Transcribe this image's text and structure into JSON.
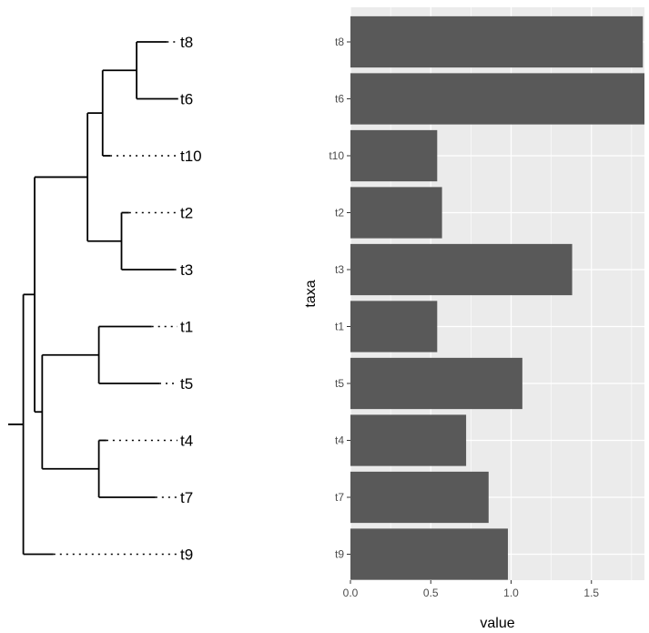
{
  "chart_data": [
    {
      "type": "tree",
      "title": "",
      "tips": [
        "t8",
        "t6",
        "t10",
        "t2",
        "t3",
        "t1",
        "t5",
        "t4",
        "t7",
        "t9"
      ],
      "root_edge": 0.04,
      "newick": "(((((t8:0.08,t6:0.11):0.09,t10:0.02):0.04,(t2:0.02,t3:0.14):0.09):0.14,((t1:0.14,t5:0.16):0.15,(t4:0.02,t7:0.15):0.15):0.02):0.03,t9:0.08);",
      "tree": {
        "children": [
          {
            "length": 0.03,
            "children": [
              {
                "length": 0.14,
                "children": [
                  {
                    "length": 0.04,
                    "children": [
                      {
                        "length": 0.09,
                        "children": [
                          {
                            "name": "t8",
                            "length": 0.08
                          },
                          {
                            "name": "t6",
                            "length": 0.11
                          }
                        ]
                      },
                      {
                        "name": "t10",
                        "length": 0.02
                      }
                    ]
                  },
                  {
                    "length": 0.09,
                    "children": [
                      {
                        "name": "t2",
                        "length": 0.02
                      },
                      {
                        "name": "t3",
                        "length": 0.14
                      }
                    ]
                  }
                ]
              },
              {
                "length": 0.02,
                "children": [
                  {
                    "length": 0.15,
                    "children": [
                      {
                        "name": "t1",
                        "length": 0.14
                      },
                      {
                        "name": "t5",
                        "length": 0.16
                      }
                    ]
                  },
                  {
                    "length": 0.15,
                    "children": [
                      {
                        "name": "t4",
                        "length": 0.02
                      },
                      {
                        "name": "t7",
                        "length": 0.15
                      }
                    ]
                  }
                ]
              }
            ]
          },
          {
            "name": "t9",
            "length": 0.08
          }
        ]
      }
    },
    {
      "type": "bar",
      "orientation": "horizontal",
      "title": "",
      "xlabel": "value",
      "ylabel": "taxa",
      "categories": [
        "t8",
        "t6",
        "t10",
        "t2",
        "t3",
        "t1",
        "t5",
        "t4",
        "t7",
        "t9"
      ],
      "values": [
        1.82,
        1.83,
        0.54,
        0.57,
        1.38,
        0.54,
        1.07,
        0.72,
        0.86,
        0.98
      ],
      "xlim": [
        0,
        1.83
      ],
      "xticks": [
        0.0,
        0.5,
        1.0,
        1.5
      ],
      "xtick_labels": [
        "0.0",
        "0.5",
        "1.0",
        "1.5"
      ],
      "bar_color": "#595959",
      "panel_background": "#ebebeb",
      "grid_color": "#ffffff",
      "grid": true
    }
  ]
}
